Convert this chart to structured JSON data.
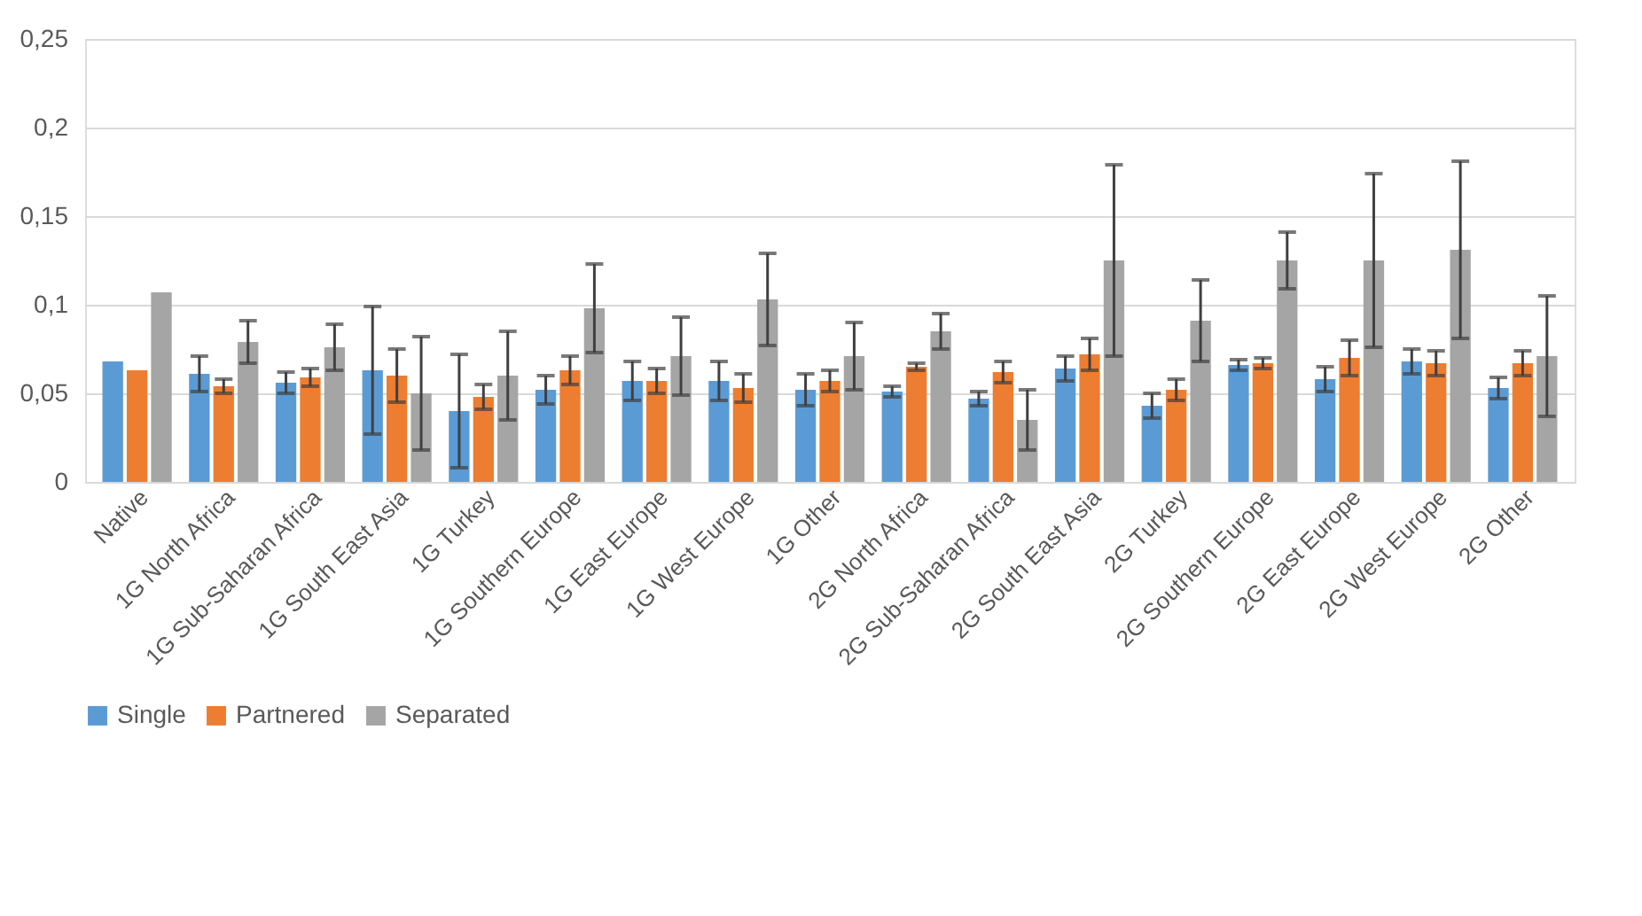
{
  "chart_data": {
    "type": "bar",
    "categories": [
      "Native",
      "1G North Africa",
      "1G Sub-Saharan Africa",
      "1G South East Asia",
      "1G Turkey",
      "1G Southern Europe",
      "1G East Europe",
      "1G West Europe",
      "1G Other",
      "2G North Africa",
      "2G Sub-Saharan Africa",
      "2G South East Asia",
      "2G Turkey",
      "2G Southern Europe",
      "2G East Europe",
      "2G West Europe",
      "2G Other"
    ],
    "series": [
      {
        "name": "Single",
        "color": "#5b9bd5",
        "values": [
          0.068,
          0.061,
          0.056,
          0.063,
          0.04,
          0.052,
          0.057,
          0.057,
          0.052,
          0.051,
          0.047,
          0.064,
          0.043,
          0.066,
          0.058,
          0.068,
          0.053
        ],
        "errors": [
          null,
          0.01,
          0.006,
          0.036,
          0.032,
          0.008,
          0.011,
          0.011,
          0.009,
          0.003,
          0.004,
          0.007,
          0.007,
          0.003,
          0.007,
          0.007,
          0.006
        ]
      },
      {
        "name": "Partnered",
        "color": "#ed7d31",
        "values": [
          0.063,
          0.054,
          0.059,
          0.06,
          0.048,
          0.063,
          0.057,
          0.053,
          0.057,
          0.065,
          0.062,
          0.072,
          0.052,
          0.067,
          0.07,
          0.067,
          0.067
        ],
        "errors": [
          null,
          0.004,
          0.005,
          0.015,
          0.007,
          0.008,
          0.007,
          0.008,
          0.006,
          0.002,
          0.006,
          0.009,
          0.006,
          0.003,
          0.01,
          0.007,
          0.007
        ]
      },
      {
        "name": "Separated",
        "color": "#a5a5a5",
        "values": [
          0.107,
          0.079,
          0.076,
          0.05,
          0.06,
          0.098,
          0.071,
          0.103,
          0.071,
          0.085,
          0.035,
          0.125,
          0.091,
          0.125,
          0.125,
          0.131,
          0.071
        ],
        "errors": [
          null,
          0.012,
          0.013,
          0.032,
          0.025,
          0.025,
          0.022,
          0.026,
          0.019,
          0.01,
          0.017,
          0.054,
          0.023,
          0.016,
          0.049,
          0.05,
          0.034
        ]
      }
    ],
    "ylim": [
      0,
      0.25
    ],
    "yticks": [
      {
        "value": 0,
        "label": "0"
      },
      {
        "value": 0.05,
        "label": "0,05"
      },
      {
        "value": 0.1,
        "label": "0,1"
      },
      {
        "value": 0.15,
        "label": "0,15"
      },
      {
        "value": 0.2,
        "label": "0,2"
      },
      {
        "value": 0.25,
        "label": "0,25"
      }
    ],
    "grid": "y",
    "legend": "bottom"
  }
}
